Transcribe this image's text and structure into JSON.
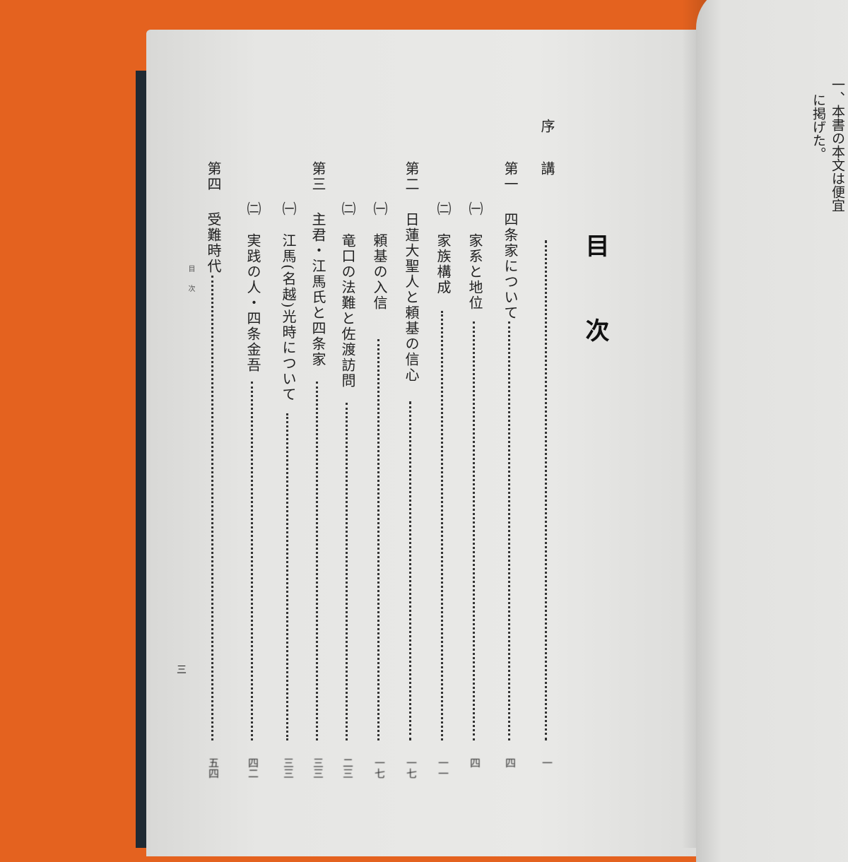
{
  "toc": {
    "title_chars": [
      "目",
      "次"
    ],
    "entries": [
      {
        "prefix": "序",
        "label": "講",
        "page": "一"
      },
      {
        "prefix": "第一",
        "label": "四条家について",
        "page": "四"
      },
      {
        "prefix": "㈠",
        "label": "家系と地位",
        "page": "四"
      },
      {
        "prefix": "㈡",
        "label": "家族構成",
        "page": "一一"
      },
      {
        "prefix": "第二",
        "label": "日蓮大聖人と頼基の信心",
        "page": "一七"
      },
      {
        "prefix": "㈠",
        "label": "頼基の入信",
        "page": "一七"
      },
      {
        "prefix": "㈡",
        "label": "竜口の法難と佐渡訪問",
        "page": "二三"
      },
      {
        "prefix": "第三",
        "label": "主君・江馬氏と四条家",
        "page": "三三"
      },
      {
        "prefix": "㈠",
        "label": "江馬(名越)光時について",
        "page": "三三"
      },
      {
        "prefix": "㈡",
        "label": "実践の人・四条金吾",
        "page": "四二"
      },
      {
        "prefix": "第四",
        "label": "受難時代",
        "page": "五四"
      }
    ],
    "footer": "目次",
    "folio": "三"
  },
  "right_page": {
    "lines": [
      "一、本書の本文は便宜",
      "に掲げた。"
    ]
  },
  "colors": {
    "background": "#e4621f",
    "paper": "#e9e9e7",
    "ink": "#222222",
    "cover": "#1f2a33"
  }
}
